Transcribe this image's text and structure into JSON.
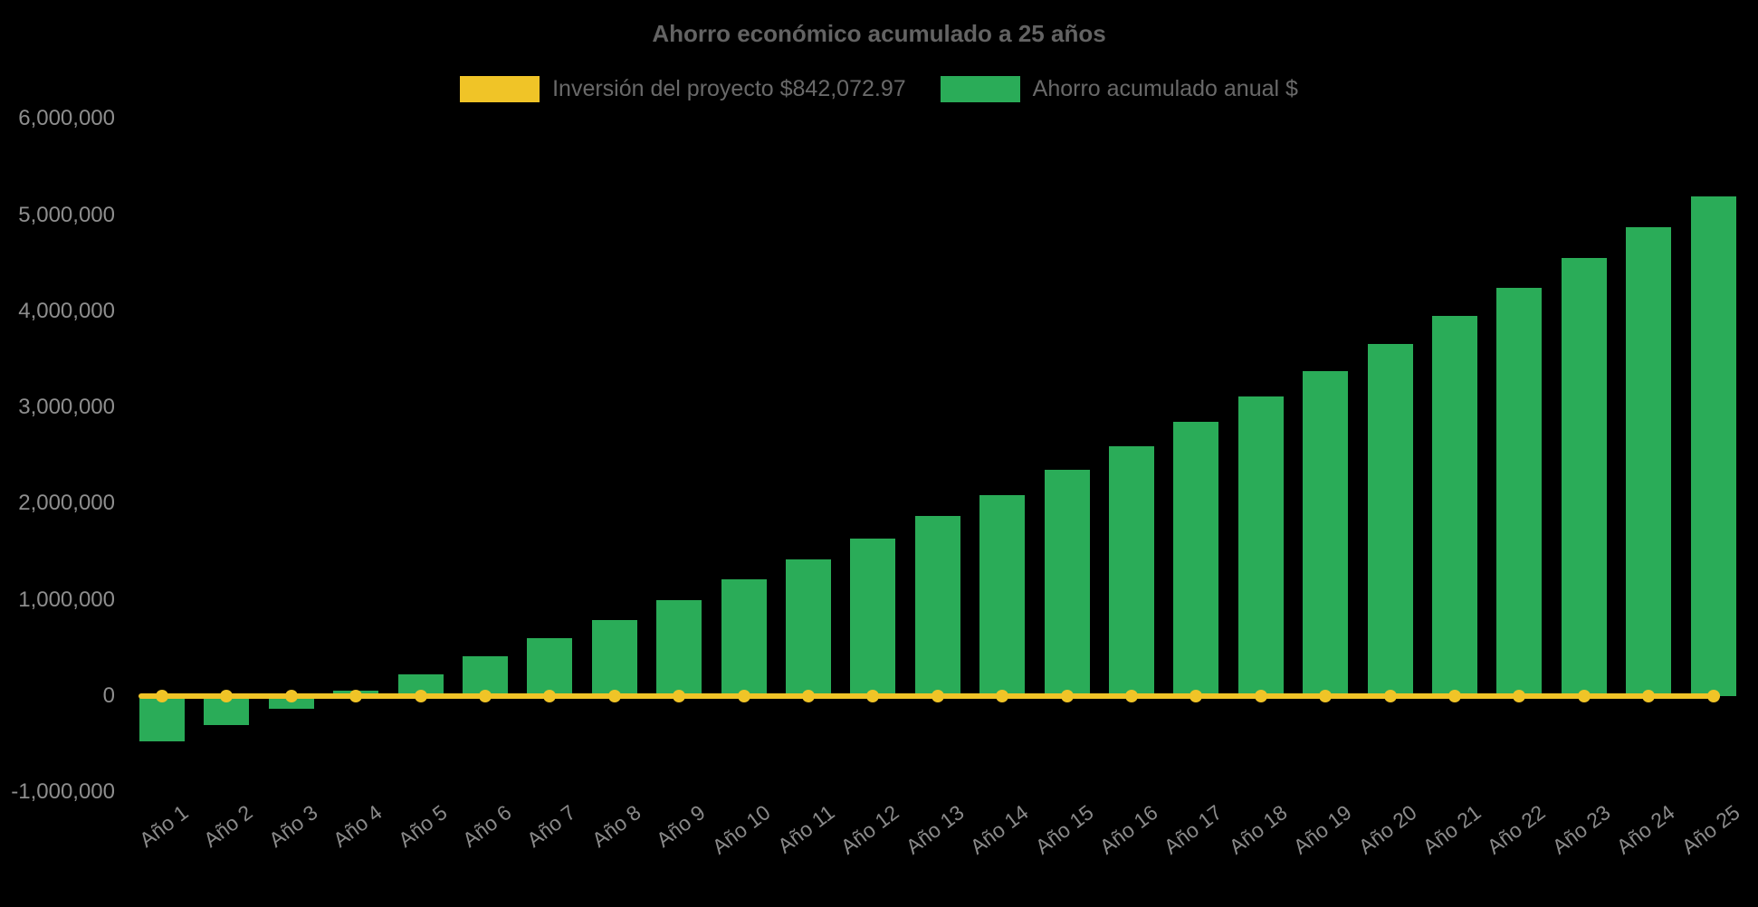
{
  "chart_data": {
    "type": "bar",
    "title": "Ahorro económico acumulado a 25 años",
    "categories": [
      "Año 1",
      "Año 2",
      "Año 3",
      "Año 4",
      "Año 5",
      "Año 6",
      "Año 7",
      "Año 8",
      "Año 9",
      "Año 10",
      "Año 11",
      "Año 12",
      "Año 13",
      "Año 14",
      "Año 15",
      "Año 16",
      "Año 17",
      "Año 18",
      "Año 19",
      "Año 20",
      "Año 21",
      "Año 22",
      "Año 23",
      "Año 24",
      "Año 25"
    ],
    "series": [
      {
        "name": "Inversión del proyecto $842,072.97",
        "type": "line",
        "color": "#F0C427",
        "values": [
          0,
          0,
          0,
          0,
          0,
          0,
          0,
          0,
          0,
          0,
          0,
          0,
          0,
          0,
          0,
          0,
          0,
          0,
          0,
          0,
          0,
          0,
          0,
          0,
          0
        ]
      },
      {
        "name": "Ahorro acumulado anual $",
        "type": "bar",
        "color": "#2AAC58",
        "values": [
          -470000,
          -300000,
          -130000,
          60000,
          230000,
          410000,
          600000,
          790000,
          1000000,
          1210000,
          1420000,
          1640000,
          1870000,
          2090000,
          2350000,
          2600000,
          2850000,
          3110000,
          3380000,
          3660000,
          3950000,
          4240000,
          4550000,
          4870000,
          5190000
        ]
      }
    ],
    "ylim": [
      -1000000,
      6000000
    ],
    "y_ticks": {
      "values": [
        6000000,
        5000000,
        4000000,
        3000000,
        2000000,
        1000000,
        0,
        -1000000
      ],
      "labels": [
        "6,000,000",
        "5,000,000",
        "4,000,000",
        "3,000,000",
        "2,000,000",
        "1,000,000",
        "0",
        "-1,000,000"
      ]
    },
    "grid": false,
    "legend_position": "top",
    "background": "#000000",
    "text_colors": {
      "title": "#636363",
      "legend": "#696969",
      "ticks": "#8e8e8e"
    }
  }
}
